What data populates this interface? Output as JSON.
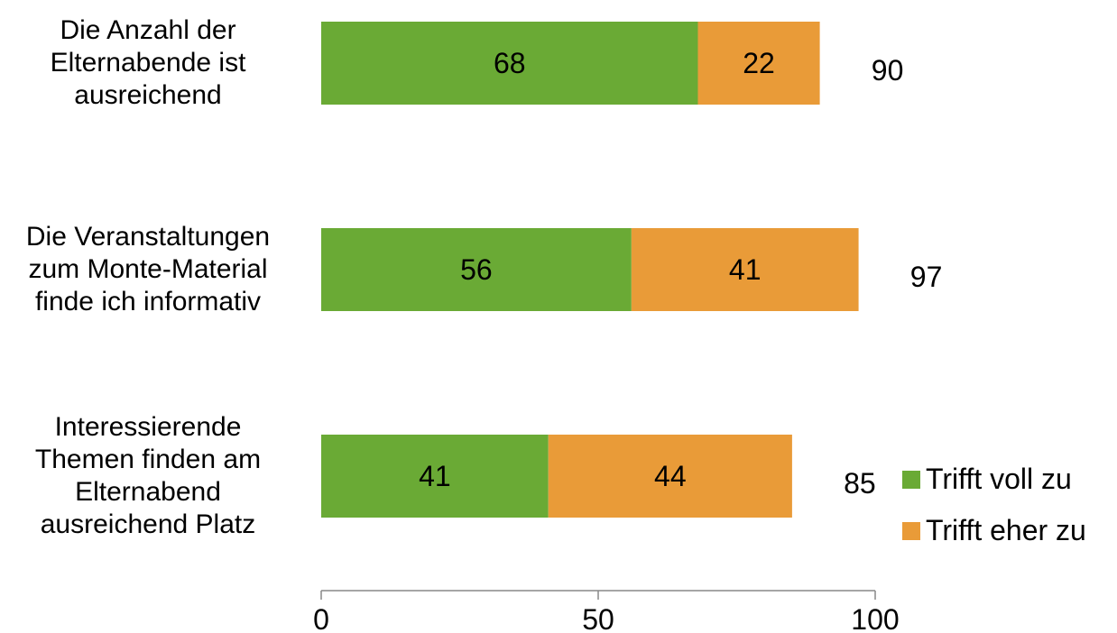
{
  "chart_data": {
    "type": "bar",
    "orientation": "horizontal",
    "stacked": true,
    "categories": [
      [
        "Die Anzahl der",
        "Elternabende ist",
        "ausreichend"
      ],
      [
        "Die Veranstaltungen",
        "zum Monte-Material",
        "finde ich informativ"
      ],
      [
        "Interessierende",
        "Themen finden am",
        "Elternabend",
        "ausreichend Platz"
      ]
    ],
    "series": [
      {
        "name": "Trifft voll zu",
        "values": [
          68,
          56,
          41
        ],
        "color": "#6aaa35"
      },
      {
        "name": "Trifft eher zu",
        "values": [
          22,
          41,
          44
        ],
        "color": "#e99b38"
      }
    ],
    "totals": [
      90,
      97,
      85
    ],
    "xlim": [
      0,
      100
    ],
    "xticks": [
      "0",
      "50",
      "100"
    ],
    "grid": false,
    "legend": "bottom-right"
  }
}
